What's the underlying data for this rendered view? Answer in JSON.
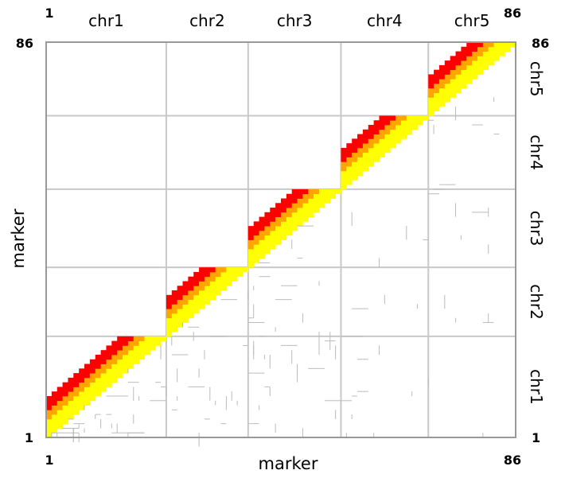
{
  "chart_data": {
    "type": "heatmap",
    "title": "",
    "xlabel": "marker",
    "ylabel": "marker",
    "x_range": [
      1,
      86
    ],
    "y_range": [
      1,
      86
    ],
    "x_ticks": [
      "1",
      "86"
    ],
    "y_ticks": [
      "1",
      "86"
    ],
    "right_ticks": [
      "1",
      "86"
    ],
    "chromosomes": [
      {
        "name": "chr1",
        "start": 1,
        "end": 22
      },
      {
        "name": "chr2",
        "start": 23,
        "end": 37
      },
      {
        "name": "chr3",
        "start": 38,
        "end": 54
      },
      {
        "name": "chr4",
        "start": 55,
        "end": 70
      },
      {
        "name": "chr5",
        "start": 71,
        "end": 86
      }
    ],
    "colors": {
      "high": "#ffff00",
      "mid": "#ffa500",
      "low": "#ff0000",
      "grid": "#c8c8c8",
      "frame": "#999999",
      "lower_trace": "#bbbbbb"
    },
    "legend": "none",
    "grid": true
  }
}
